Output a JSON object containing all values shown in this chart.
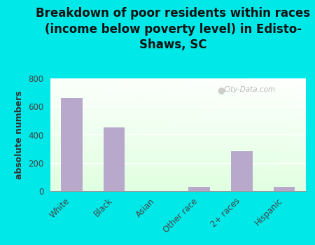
{
  "categories": [
    "White",
    "Black",
    "Asian",
    "Other race",
    "2+ races",
    "Hispanic"
  ],
  "values": [
    660,
    450,
    0,
    28,
    285,
    28
  ],
  "bar_color": "#b8a8cc",
  "title": "Breakdown of poor residents within races\n(income below poverty level) in Edisto-\nShaws, SC",
  "ylabel": "absolute numbers",
  "ylim": [
    0,
    800
  ],
  "yticks": [
    0,
    200,
    400,
    600,
    800
  ],
  "bg_outer": "#00e8e8",
  "watermark": "City-Data.com",
  "title_fontsize": 12,
  "ylabel_fontsize": 9,
  "tick_fontsize": 8.5
}
